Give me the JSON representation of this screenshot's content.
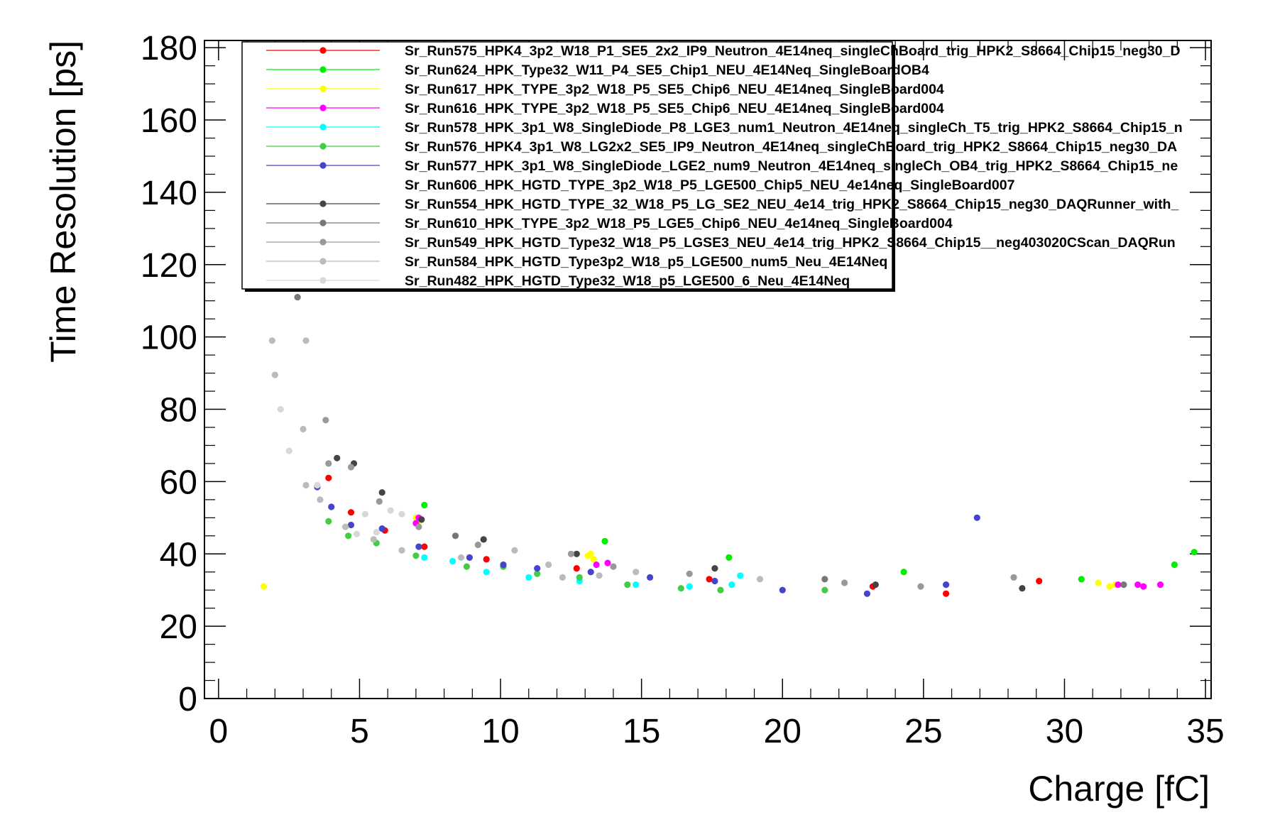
{
  "chart_data": {
    "type": "scatter",
    "xlabel": "Charge [fC]",
    "ylabel": "Time Resolution [ps]",
    "xlim": [
      -0.5,
      35.2
    ],
    "ylim": [
      0,
      182
    ],
    "x_ticks": [
      0,
      5,
      10,
      15,
      20,
      25,
      30,
      35
    ],
    "y_ticks": [
      0,
      20,
      40,
      60,
      80,
      100,
      120,
      140,
      160,
      180
    ],
    "grid": false,
    "legend_position": "top-left",
    "series": [
      {
        "name": "Sr_Run575_HPK4_3p2_W18_P1_SE5_2x2_IP9_Neutron_4E14neq_singleChBoard_trig_HPK2_S8664_Chip15_neg30_D",
        "color": "#ff0000",
        "points": [
          [
            3.9,
            61
          ],
          [
            4.7,
            51.5
          ],
          [
            5.9,
            46.5
          ],
          [
            7.3,
            42
          ],
          [
            9.5,
            38.5
          ],
          [
            12.7,
            36
          ],
          [
            17.4,
            33
          ],
          [
            23.2,
            31
          ],
          [
            25.8,
            29
          ],
          [
            29.1,
            32.5
          ]
        ]
      },
      {
        "name": "Sr_Run624_HPK_Type32_W11_P4_SE5_Chip1_NEU_4E14Neq_SingleBoardOB4",
        "color": "#00ee00",
        "points": [
          [
            7.3,
            53.5
          ],
          [
            13.7,
            43.5
          ],
          [
            18.1,
            39
          ],
          [
            24.3,
            35
          ],
          [
            30.6,
            33
          ],
          [
            33.9,
            37
          ],
          [
            34.6,
            40.5
          ]
        ]
      },
      {
        "name": "Sr_Run617_HPK_TYPE_3p2_W18_P5_SE5_Chip6_NEU_4E14neq_SingleBoard004",
        "color": "#ffff00",
        "points": [
          [
            1.6,
            31
          ],
          [
            7.0,
            50
          ],
          [
            7.1,
            49
          ],
          [
            13.1,
            39.5
          ],
          [
            13.2,
            40
          ],
          [
            13.3,
            38.5
          ],
          [
            31.2,
            32
          ],
          [
            31.6,
            31
          ],
          [
            31.8,
            31.5
          ]
        ]
      },
      {
        "name": "Sr_Run616_HPK_TYPE_3p2_W18_P5_SE5_Chip6_NEU_4E14neq_SingleBoard004",
        "color": "#ff00ff",
        "points": [
          [
            7.0,
            48.5
          ],
          [
            7.1,
            50
          ],
          [
            13.4,
            37
          ],
          [
            13.8,
            37.5
          ],
          [
            31.9,
            31.5
          ],
          [
            32.6,
            31.5
          ],
          [
            32.8,
            31
          ],
          [
            33.4,
            31.5
          ]
        ]
      },
      {
        "name": "Sr_Run578_HPK_3p1_W8_SingleDiode_P8_LGE3_num1_Neutron_4E14neq_singleCh_T5_trig_HPK2_S8664_Chip15_n",
        "color": "#00ffff",
        "points": [
          [
            7.3,
            39
          ],
          [
            8.3,
            38
          ],
          [
            9.5,
            35
          ],
          [
            11.0,
            33.5
          ],
          [
            12.8,
            32.5
          ],
          [
            14.8,
            31.5
          ],
          [
            16.7,
            31
          ],
          [
            18.2,
            31.5
          ],
          [
            18.5,
            34
          ]
        ]
      },
      {
        "name": "Sr_Run576_HPK4_3p1_W8_LG2x2_SE5_IP9_Neutron_4E14neq_singleChBoard_trig_HPK2_S8664_Chip15_neg30_DA",
        "color": "#44cc44",
        "points": [
          [
            3.9,
            49
          ],
          [
            4.6,
            45
          ],
          [
            5.6,
            43
          ],
          [
            7.0,
            39.5
          ],
          [
            8.8,
            36.5
          ],
          [
            10.1,
            36.5
          ],
          [
            11.3,
            34.5
          ],
          [
            12.8,
            33.5
          ],
          [
            14.5,
            31.5
          ],
          [
            16.4,
            30.5
          ],
          [
            17.8,
            30
          ],
          [
            21.5,
            30
          ]
        ]
      },
      {
        "name": "Sr_Run577_HPK_3p1_W8_SingleDiode_LGE2_num9_Neutron_4E14neq_singleCh_OB4_trig_HPK2_S8664_Chip15_ne",
        "color": "#4444cc",
        "points": [
          [
            3.5,
            58.5
          ],
          [
            4.0,
            53
          ],
          [
            4.7,
            48
          ],
          [
            5.8,
            47
          ],
          [
            7.1,
            42
          ],
          [
            8.9,
            39
          ],
          [
            10.1,
            37
          ],
          [
            11.3,
            36
          ],
          [
            13.2,
            35
          ],
          [
            15.3,
            33.5
          ],
          [
            17.6,
            32.5
          ],
          [
            20.0,
            30
          ],
          [
            23.0,
            29
          ],
          [
            25.8,
            31.5
          ],
          [
            26.9,
            50
          ]
        ]
      },
      {
        "name": "Sr_Run606_HPK_HGTD_TYPE_3p2_W18_P5_LGE500_Chip5_NEU_4e14neq_SingleBoard007",
        "color": "#ffffff",
        "points": []
      },
      {
        "name": "Sr_Run554_HPK_HGTD_TYPE_32_W18_P5_LG_SE2_NEU_4e14_trig_HPK2_S8664_Chip15_neg30_DAQRunner_with_",
        "color": "#444444",
        "points": [
          [
            4.2,
            66.5
          ],
          [
            4.8,
            65
          ],
          [
            5.8,
            57
          ],
          [
            7.2,
            49.5
          ],
          [
            9.4,
            44
          ],
          [
            12.7,
            40
          ],
          [
            17.6,
            36
          ],
          [
            23.3,
            31.5
          ],
          [
            28.5,
            30.5
          ]
        ]
      },
      {
        "name": "Sr_Run610_HPK_TYPE_3p2_W18_P5_LGE5_Chip6_NEU_4e14neq_SingleBoard004",
        "color": "#777777",
        "points": [
          [
            2.8,
            111
          ],
          [
            8.4,
            45
          ],
          [
            21.5,
            33
          ],
          [
            32.1,
            31.5
          ]
        ]
      },
      {
        "name": "Sr_Run549_HPK_HGTD_Type32_W18_P5_LGSE3_NEU_4e14_trig_HPK2_S8664_Chip15__neg403020CScan_DAQRun",
        "color": "#999999",
        "points": [
          [
            3.8,
            77
          ],
          [
            3.9,
            65
          ],
          [
            4.7,
            64
          ],
          [
            5.7,
            54.5
          ],
          [
            7.1,
            47.5
          ],
          [
            9.2,
            42.5
          ],
          [
            12.5,
            40
          ],
          [
            14.0,
            36.5
          ],
          [
            16.7,
            34.5
          ],
          [
            22.2,
            32
          ],
          [
            24.9,
            31
          ],
          [
            28.2,
            33.5
          ]
        ]
      },
      {
        "name": "Sr_Run584_HPK_HGTD_Type3p2_W18_p5_LGE500_num5_Neu_4E14Neq",
        "color": "#bbbbbb",
        "points": [
          [
            1.9,
            99
          ],
          [
            3.1,
            99
          ],
          [
            2.0,
            89.5
          ],
          [
            3.0,
            74.5
          ],
          [
            3.1,
            59
          ],
          [
            3.6,
            55
          ],
          [
            4.5,
            47.5
          ],
          [
            5.5,
            44
          ],
          [
            6.5,
            41
          ],
          [
            8.6,
            39
          ],
          [
            10.5,
            41
          ],
          [
            11.7,
            37
          ],
          [
            12.2,
            33.5
          ],
          [
            13.5,
            34
          ],
          [
            14.8,
            35
          ],
          [
            19.2,
            33
          ]
        ]
      },
      {
        "name": "Sr_Run482_HPK_HGTD_Type32_W18_p5_LGE500_6_Neu_4E14Neq",
        "color": "#d8d8d8",
        "points": [
          [
            2.2,
            80
          ],
          [
            2.5,
            68.5
          ],
          [
            3.5,
            59
          ],
          [
            4.9,
            45.5
          ],
          [
            5.2,
            51
          ],
          [
            5.6,
            46
          ],
          [
            6.1,
            52
          ],
          [
            6.5,
            51
          ]
        ]
      }
    ]
  }
}
